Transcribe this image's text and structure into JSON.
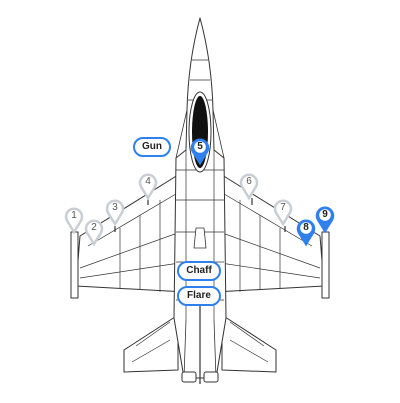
{
  "colors": {
    "accent": "#2f80ed",
    "pin_inactive": "#c9ced4",
    "canopy": "#111111",
    "outline": "#333333"
  },
  "stations": [
    {
      "label": "1",
      "active": false
    },
    {
      "label": "2",
      "active": false
    },
    {
      "label": "3",
      "active": false
    },
    {
      "label": "4",
      "active": false
    },
    {
      "label": "5",
      "active": true
    },
    {
      "label": "6",
      "active": false
    },
    {
      "label": "7",
      "active": false
    },
    {
      "label": "8",
      "active": true
    },
    {
      "label": "9",
      "active": true
    }
  ],
  "buttons": {
    "gun": "Gun",
    "chaff": "Chaff",
    "flare": "Flare"
  }
}
